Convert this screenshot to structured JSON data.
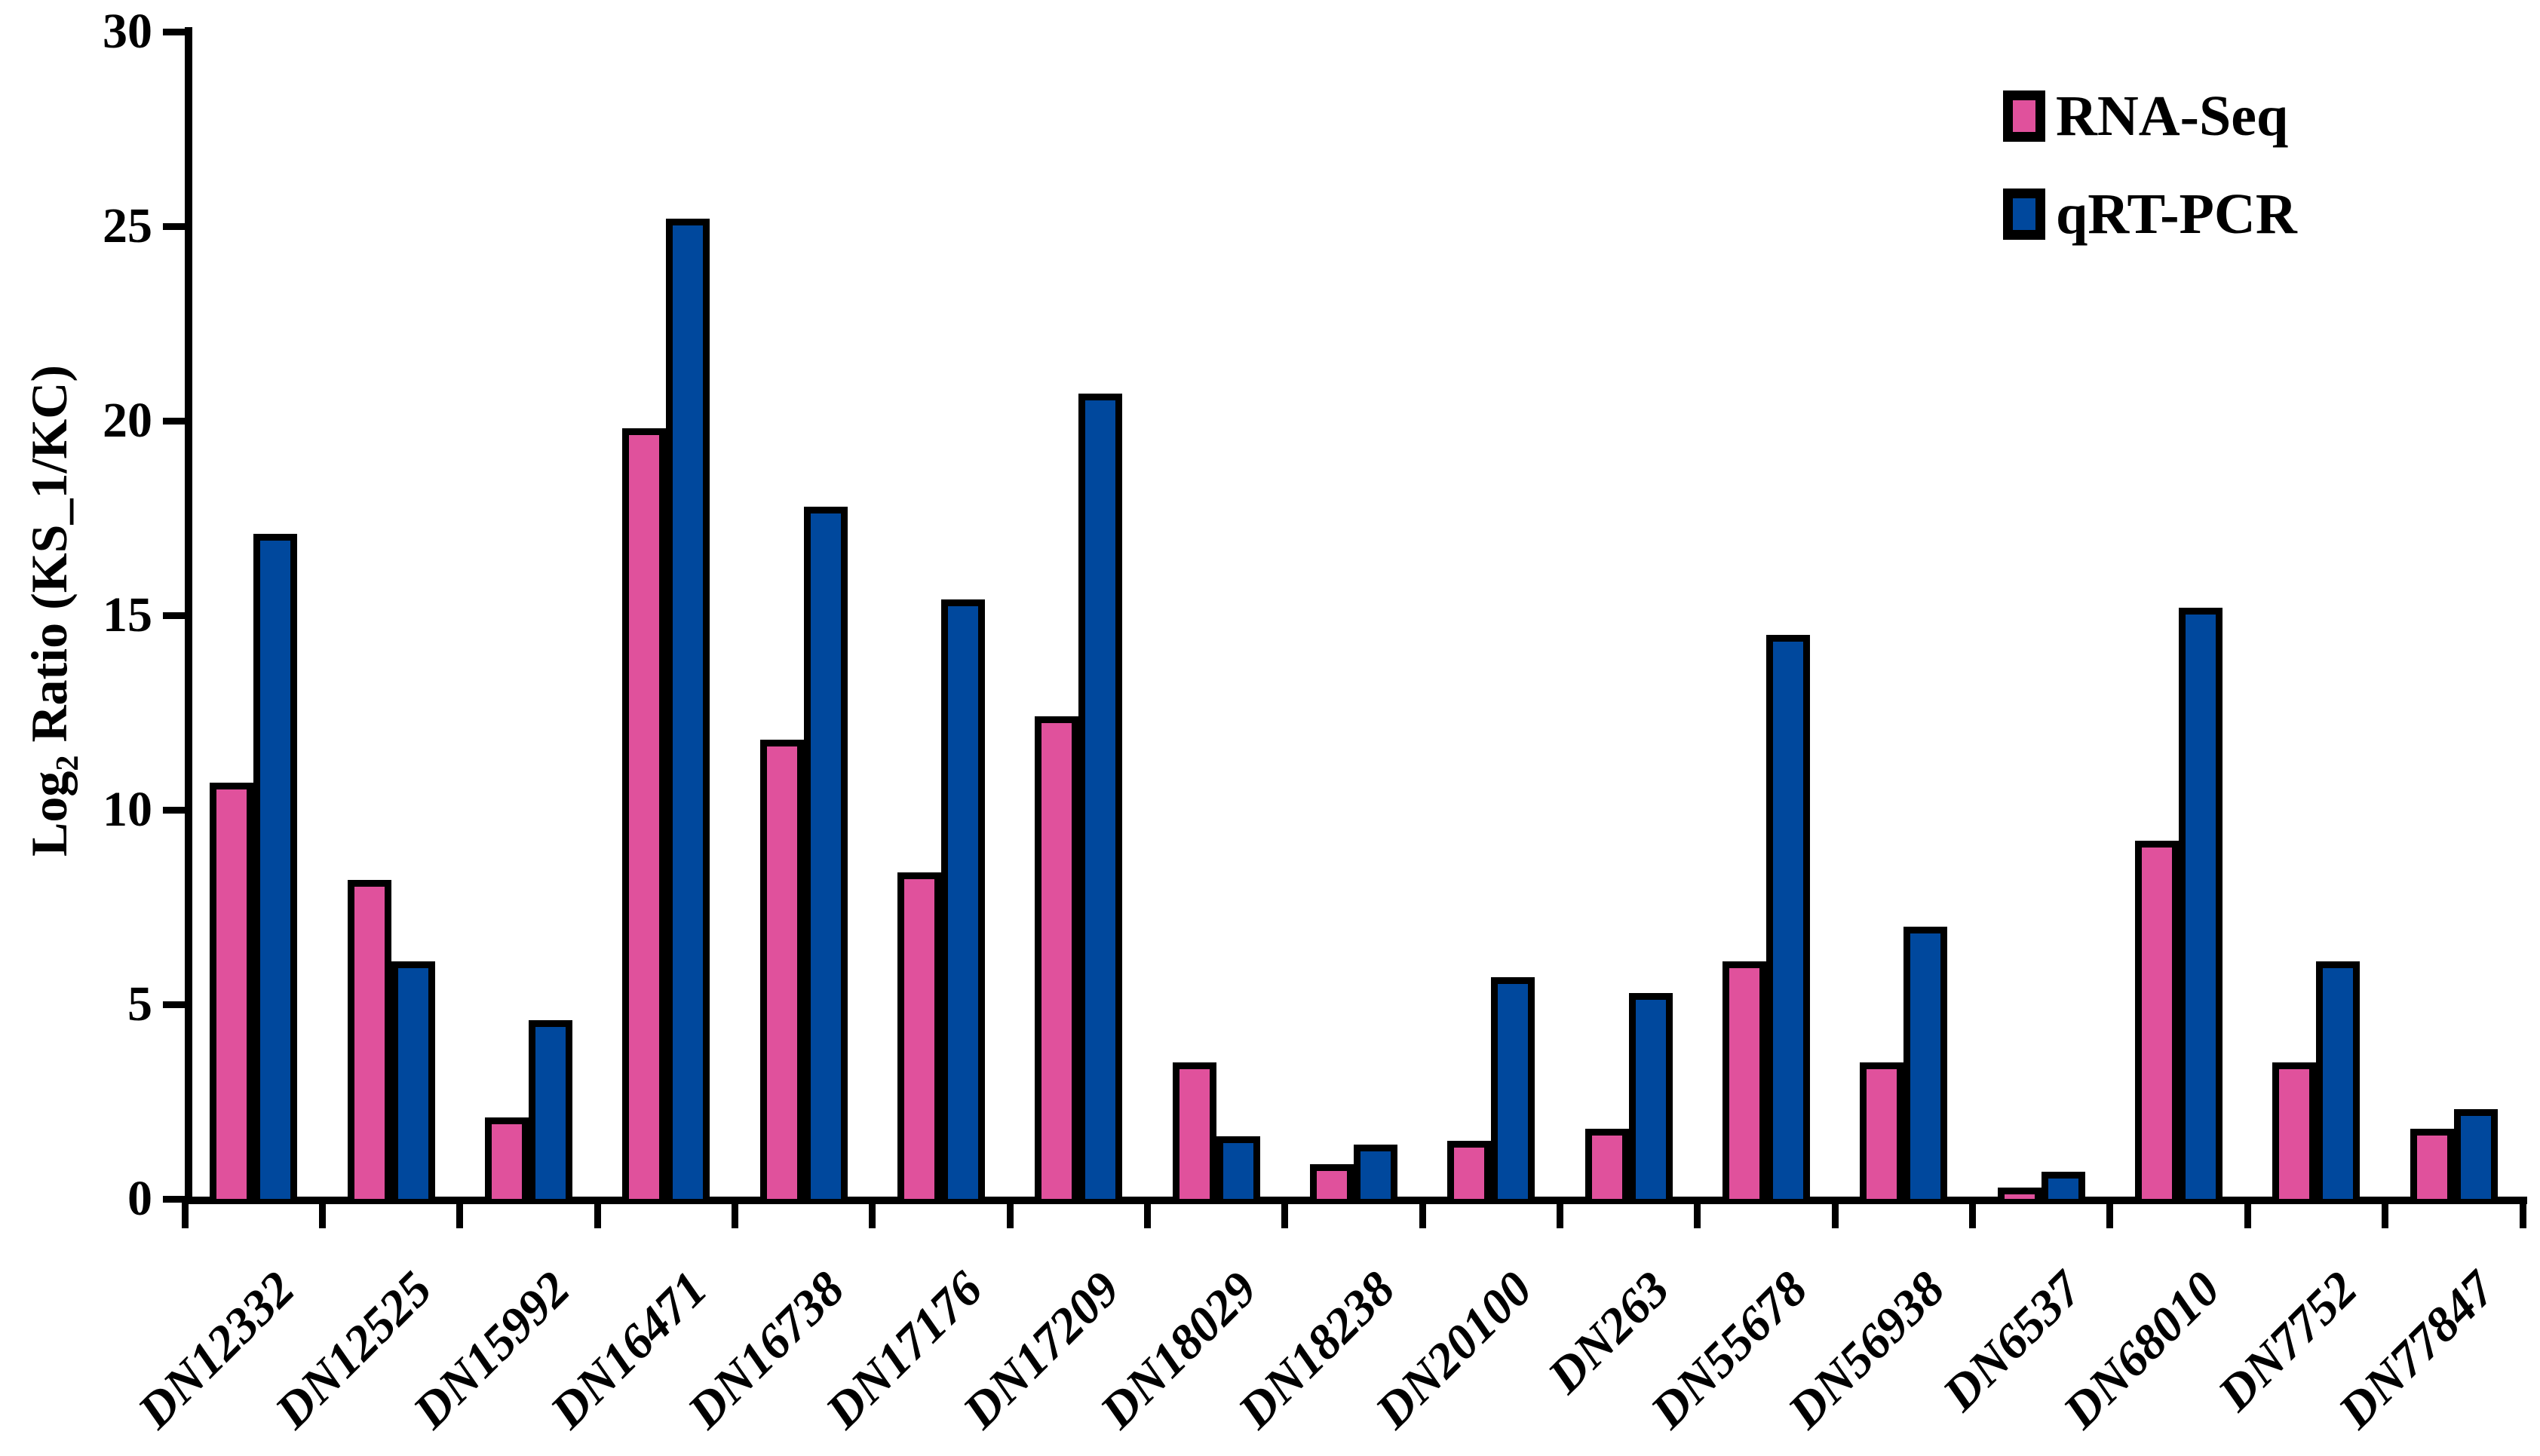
{
  "chart_data": {
    "type": "bar",
    "title": "",
    "xlabel": "",
    "ylabel": "Log2 Ratio (KS_1/KC)",
    "ylabel_parts": {
      "pre": "Log",
      "sub": "2",
      "post": " Ratio (KS_1/KC)"
    },
    "ylim": [
      0,
      30
    ],
    "yticks": [
      0,
      5,
      10,
      15,
      20,
      25,
      30
    ],
    "grid": false,
    "legend_position": "top-right",
    "bar_outline_color": "#000000",
    "categories": [
      "DN12332",
      "DN12525",
      "DN15992",
      "DN16471",
      "DN16738",
      "DN17176",
      "DN17209",
      "DN18029",
      "DN18238",
      "DN20100",
      "DN263",
      "DN55678",
      "DN56938",
      "DN6537",
      "DN68010",
      "DN7752",
      "DN77847"
    ],
    "series": [
      {
        "name": "RNA-Seq",
        "color": "#E0519C",
        "values": [
          10.7,
          8.2,
          2.1,
          19.8,
          11.8,
          8.4,
          12.4,
          3.5,
          0.9,
          1.5,
          1.8,
          6.1,
          3.5,
          0.3,
          9.2,
          3.5,
          1.8
        ]
      },
      {
        "name": "qRT-PCR",
        "color": "#00489D",
        "values": [
          17.1,
          6.1,
          4.6,
          25.2,
          17.8,
          15.4,
          20.7,
          1.6,
          1.4,
          5.7,
          5.3,
          14.5,
          7.0,
          0.7,
          15.2,
          6.1,
          2.3
        ]
      }
    ]
  },
  "legend": {
    "items": [
      {
        "label": "RNA-Seq",
        "color": "#E0519C"
      },
      {
        "label": "qRT-PCR",
        "color": "#00489D"
      }
    ]
  }
}
